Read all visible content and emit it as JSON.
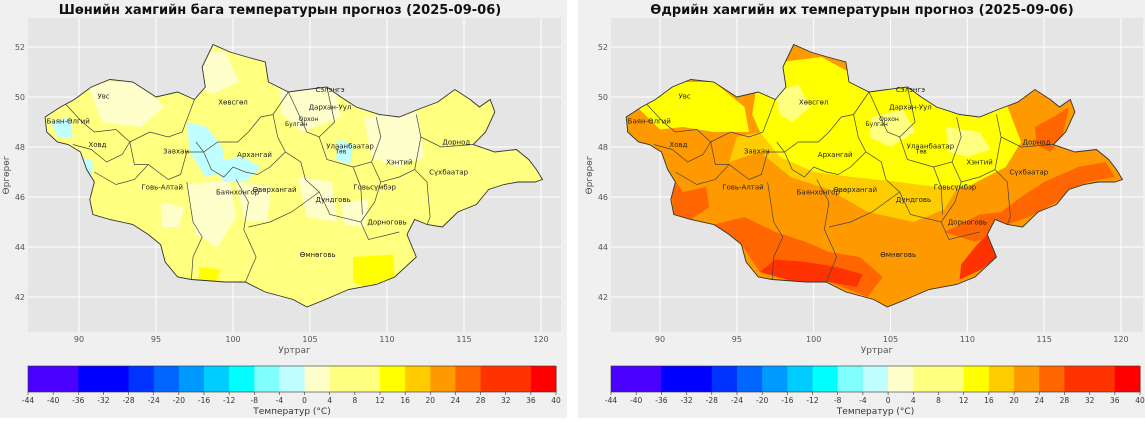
{
  "colors": {
    "panel_bg": "#f0f0f0",
    "plot_bg": "#e5e5e5",
    "grid": "#ffffff",
    "border": "#333333",
    "scale": [
      "#4a00ff",
      "#0000ff",
      "#0033ff",
      "#0066ff",
      "#0099ff",
      "#00ccff",
      "#00ffff",
      "#80ffff",
      "#c0ffff",
      "#ffffcc",
      "#ffff80",
      "#ffff00",
      "#ffcc00",
      "#ff9900",
      "#ff6600",
      "#ff3300",
      "#ff0000",
      "#cc0000"
    ]
  },
  "colorbar": {
    "ticks": [
      "-44",
      "-40",
      "-36",
      "-32",
      "-28",
      "-24",
      "-20",
      "-16",
      "-12",
      "-8",
      "-4",
      "0",
      "4",
      "8",
      "12",
      "16",
      "20",
      "24",
      "28",
      "32",
      "36",
      "40"
    ],
    "label": "Температур (°C)"
  },
  "maps": [
    {
      "title": "Шөнийн хамгийн бага температурын прогноз (2025-09-06)",
      "xlabel": "Уртраг",
      "ylabel": "Өргөрөг",
      "xticks": [
        "90",
        "95",
        "100",
        "105",
        "110",
        "115",
        "120"
      ],
      "yticks": [
        "52",
        "50",
        "48",
        "46",
        "44",
        "42"
      ],
      "fill_theme": "minimum",
      "provinces": [
        {
          "name": "Увс"
        },
        {
          "name": "Баян-Өлгий"
        },
        {
          "name": "Ховд"
        },
        {
          "name": "Завхан"
        },
        {
          "name": "Хөвсгөл"
        },
        {
          "name": "Архангай"
        },
        {
          "name": "Говь-Алтай"
        },
        {
          "name": "Баянхонгор"
        },
        {
          "name": "Өвөрхангай"
        },
        {
          "name": "Булган"
        },
        {
          "name": "Орхон"
        },
        {
          "name": "Сэлэнгэ"
        },
        {
          "name": "Дархан-Уул"
        },
        {
          "name": "Төв"
        },
        {
          "name": "Улаанбаатар"
        },
        {
          "name": "Хэнтий"
        },
        {
          "name": "Дорнод"
        },
        {
          "name": "Сүхбаатар"
        },
        {
          "name": "Говьсүмбэр"
        },
        {
          "name": "Дундговь"
        },
        {
          "name": "Дорноговь"
        },
        {
          "name": "Өмнөговь"
        }
      ]
    },
    {
      "title": "Өдрийн хамгийн их температурын прогноз (2025-09-06)",
      "xlabel": "Уртраг",
      "ylabel": "Өргөрөг",
      "xticks": [
        "90",
        "95",
        "100",
        "105",
        "110",
        "115",
        "120"
      ],
      "yticks": [
        "52",
        "50",
        "48",
        "46",
        "44",
        "42"
      ],
      "fill_theme": "maximum",
      "provinces": [
        {
          "name": "Увс"
        },
        {
          "name": "Баян-Өлгий"
        },
        {
          "name": "Ховд"
        },
        {
          "name": "Завхан"
        },
        {
          "name": "Хөвсгөл"
        },
        {
          "name": "Архангай"
        },
        {
          "name": "Говь-Алтай"
        },
        {
          "name": "Баянхонгор"
        },
        {
          "name": "Өвөрхангай"
        },
        {
          "name": "Булган"
        },
        {
          "name": "Орхон"
        },
        {
          "name": "Сэлэнгэ"
        },
        {
          "name": "Дархан-Уул"
        },
        {
          "name": "Төв"
        },
        {
          "name": "Улаанбаатар"
        },
        {
          "name": "Хэнтий"
        },
        {
          "name": "Дорнод"
        },
        {
          "name": "Сүхбаатар"
        },
        {
          "name": "Говьсүмбэр"
        },
        {
          "name": "Дундговь"
        },
        {
          "name": "Дорноговь"
        },
        {
          "name": "Өмнөговь"
        }
      ]
    }
  ]
}
